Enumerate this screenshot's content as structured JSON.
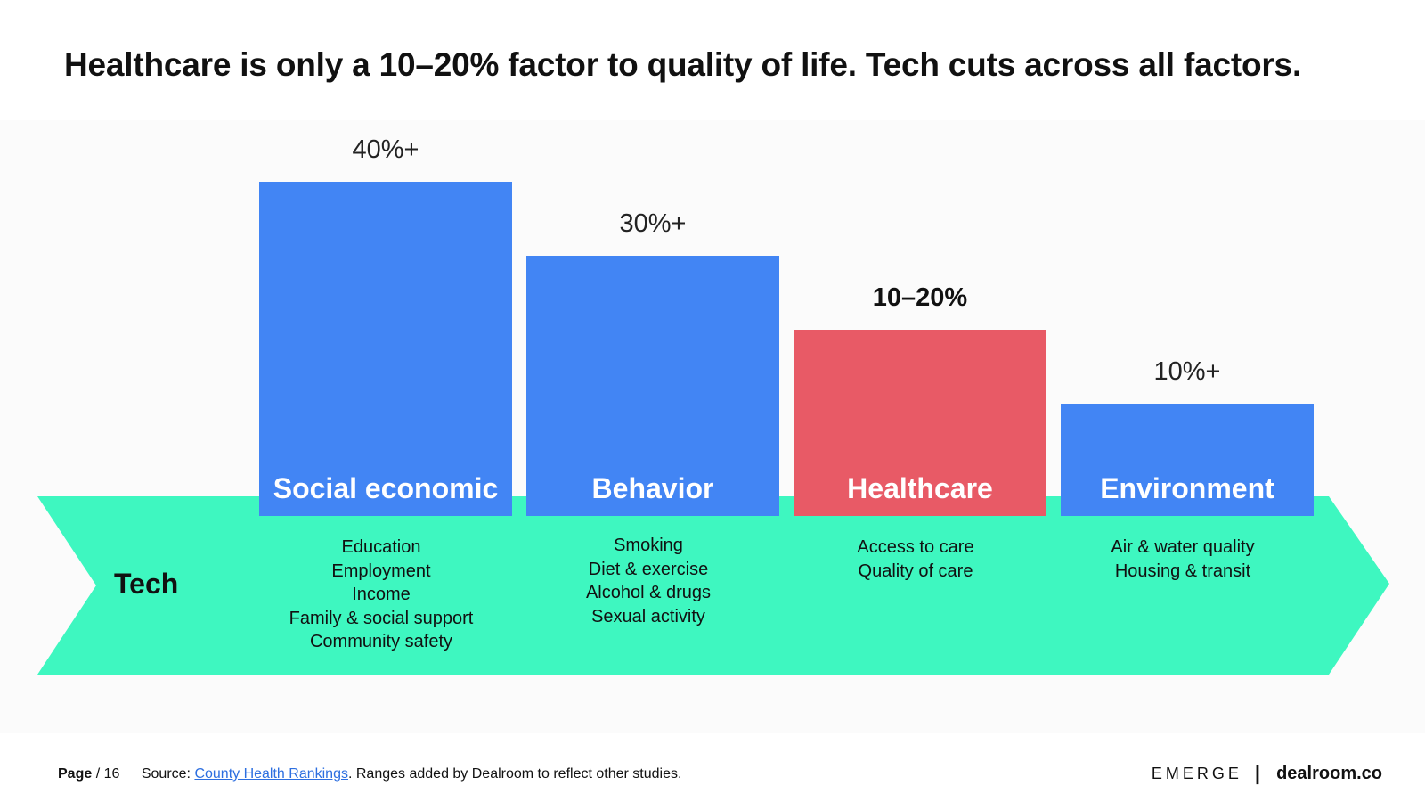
{
  "title": "Healthcare is only a 10–20% factor to quality of life. Tech cuts across all factors.",
  "tech_label": "Tech",
  "colors": {
    "bar_default": "#4285f4",
    "bar_highlight": "#e85a66",
    "arrow": "#3ef7c0",
    "panel": "#fbfbfb",
    "link": "#2d6fe0"
  },
  "chart_data": {
    "type": "bar",
    "title": "Healthcare is only a 10–20% factor to quality of life. Tech cuts across all factors.",
    "xlabel": "",
    "ylabel": "",
    "ylim": [
      0,
      40
    ],
    "categories": [
      "Social economic",
      "Behavior",
      "Healthcare",
      "Environment"
    ],
    "values": [
      40,
      30,
      20,
      10
    ],
    "value_labels": [
      "40%+",
      "30%+",
      "10–20%",
      "10%+"
    ],
    "highlight_index": 2,
    "factors": [
      [
        "Education",
        "Employment",
        "Income",
        "Family & social support",
        "Community safety"
      ],
      [
        "Smoking",
        "Diet & exercise",
        "Alcohol & drugs",
        "Sexual activity"
      ],
      [
        "Access to care",
        "Quality of care"
      ],
      [
        "Air & water quality",
        "Housing & transit"
      ]
    ]
  },
  "footer": {
    "page_label": "Page",
    "page_number": "/ 16",
    "source_prefix": "Source:",
    "source_link": "County Health Rankings",
    "source_suffix": ". Ranges added by Dealroom to reflect other studies."
  },
  "brand": {
    "emerge": "EMERGE",
    "separator": "|",
    "dealroom": "dealroom.co"
  }
}
